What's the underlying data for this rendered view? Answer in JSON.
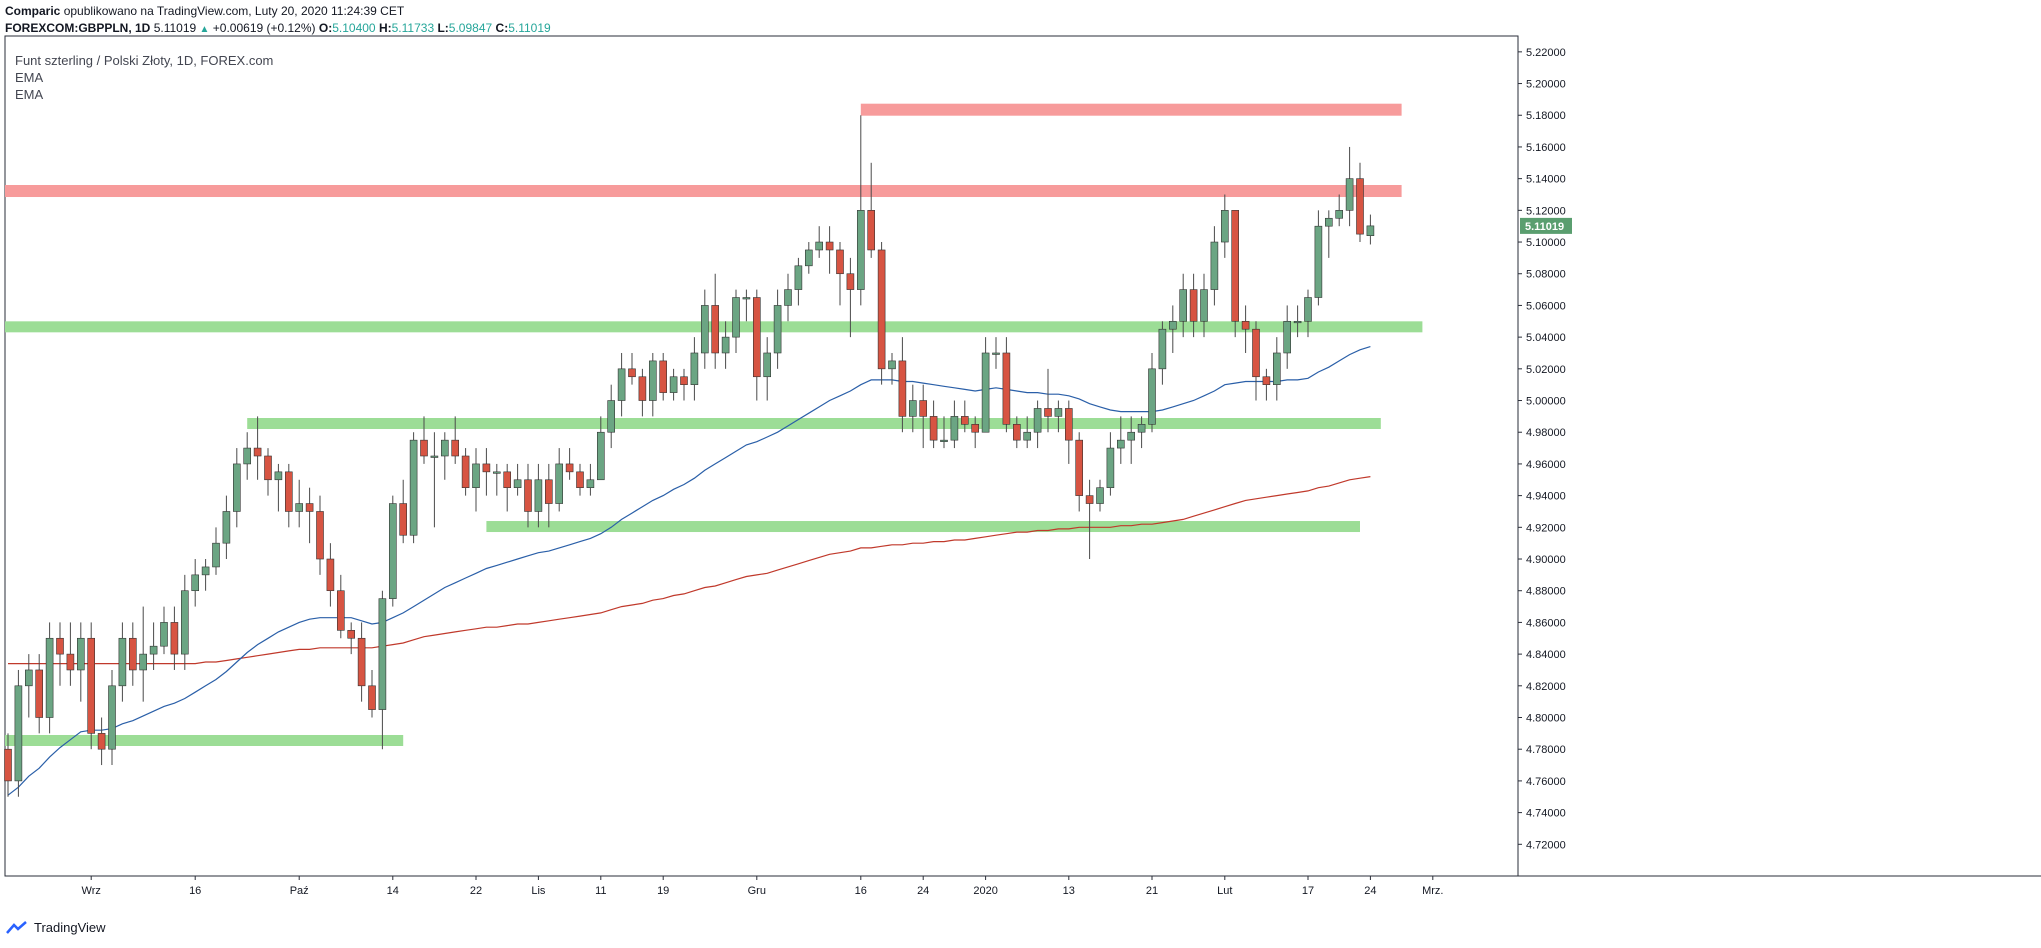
{
  "header": {
    "author": "Comparic",
    "published": "opublikowano na TradingView.com, Luty 20, 2020 11:24:39 CET",
    "symbol": "FOREXCOM:GBPPLN, 1D",
    "last": "5.11019",
    "change": "+0.00619 (+0.12%)",
    "o_label": "O:",
    "o_val": "5.10400",
    "h_label": "H:",
    "h_val": "5.11733",
    "l_label": "L:",
    "l_val": "5.09847",
    "c_label": "C:",
    "c_val": "5.11019"
  },
  "legend": {
    "title": "Funt szterling / Polski Złoty, 1D, FOREX.com",
    "ind1": "EMA",
    "ind2": "EMA"
  },
  "footer": {
    "brand": "TradingView"
  },
  "colors": {
    "up": "#6ba583",
    "down": "#d75442",
    "wick": "#4a4a4a",
    "ema_fast": "#2a5fa8",
    "ema_slow": "#c0392b",
    "resistance": "#f79b9b",
    "support": "#9cdd96",
    "last_price_bg": "#5a9e6f"
  },
  "chart_data": {
    "type": "candlestick",
    "symbol": "FOREXCOM:GBPPLN",
    "timeframe": "1D",
    "ylim": [
      4.7,
      5.23
    ],
    "y_ticks": [
      "5.22000",
      "5.20000",
      "5.18000",
      "5.16000",
      "5.14000",
      "5.12000",
      "5.10000",
      "5.08000",
      "5.06000",
      "5.04000",
      "5.02000",
      "5.00000",
      "4.98000",
      "4.96000",
      "4.94000",
      "4.92000",
      "4.90000",
      "4.88000",
      "4.86000",
      "4.84000",
      "4.82000",
      "4.80000",
      "4.78000",
      "4.76000",
      "4.74000",
      "4.72000"
    ],
    "x_ticks": [
      "Wrz",
      "16",
      "Paź",
      "14",
      "22",
      "Lis",
      "11",
      "19",
      "Gru",
      "16",
      "24",
      "2020",
      "13",
      "21",
      "Lut",
      "17",
      "24",
      "Mrz."
    ],
    "last_price_label": "5.11019",
    "candles": [
      [
        4.78,
        4.76,
        4.79,
        4.75
      ],
      [
        4.76,
        4.82,
        4.83,
        4.75
      ],
      [
        4.82,
        4.83,
        4.84,
        4.8
      ],
      [
        4.83,
        4.8,
        4.84,
        4.79
      ],
      [
        4.8,
        4.85,
        4.86,
        4.79
      ],
      [
        4.85,
        4.84,
        4.86,
        4.82
      ],
      [
        4.84,
        4.83,
        4.86,
        4.82
      ],
      [
        4.83,
        4.85,
        4.86,
        4.81
      ],
      [
        4.85,
        4.79,
        4.86,
        4.78
      ],
      [
        4.79,
        4.78,
        4.8,
        4.77
      ],
      [
        4.78,
        4.82,
        4.83,
        4.77
      ],
      [
        4.82,
        4.85,
        4.86,
        4.81
      ],
      [
        4.85,
        4.83,
        4.86,
        4.82
      ],
      [
        4.83,
        4.84,
        4.87,
        4.81
      ],
      [
        4.84,
        4.845,
        4.86,
        4.83
      ],
      [
        4.845,
        4.86,
        4.87,
        4.84
      ],
      [
        4.86,
        4.84,
        4.87,
        4.83
      ],
      [
        4.84,
        4.88,
        4.89,
        4.83
      ],
      [
        4.88,
        4.89,
        4.9,
        4.87
      ],
      [
        4.89,
        4.895,
        4.9,
        4.88
      ],
      [
        4.895,
        4.91,
        4.92,
        4.89
      ],
      [
        4.91,
        4.93,
        4.94,
        4.9
      ],
      [
        4.93,
        4.96,
        4.97,
        4.92
      ],
      [
        4.96,
        4.97,
        4.98,
        4.95
      ],
      [
        4.97,
        4.965,
        4.99,
        4.95
      ],
      [
        4.965,
        4.95,
        4.97,
        4.94
      ],
      [
        4.95,
        4.955,
        4.96,
        4.93
      ],
      [
        4.955,
        4.93,
        4.96,
        4.92
      ],
      [
        4.93,
        4.935,
        4.95,
        4.92
      ],
      [
        4.935,
        4.93,
        4.945,
        4.91
      ],
      [
        4.93,
        4.9,
        4.94,
        4.89
      ],
      [
        4.9,
        4.88,
        4.91,
        4.87
      ],
      [
        4.88,
        4.855,
        4.89,
        4.85
      ],
      [
        4.855,
        4.85,
        4.86,
        4.84
      ],
      [
        4.85,
        4.82,
        4.86,
        4.81
      ],
      [
        4.82,
        4.805,
        4.83,
        4.8
      ],
      [
        4.805,
        4.875,
        4.88,
        4.78
      ],
      [
        4.875,
        4.935,
        4.94,
        4.87
      ],
      [
        4.935,
        4.915,
        4.95,
        4.91
      ],
      [
        4.915,
        4.975,
        4.98,
        4.91
      ],
      [
        4.975,
        4.965,
        4.99,
        4.96
      ],
      [
        4.965,
        4.965,
        4.98,
        4.92
      ],
      [
        4.965,
        4.975,
        4.98,
        4.95
      ],
      [
        4.975,
        4.965,
        4.99,
        4.96
      ],
      [
        4.965,
        4.945,
        4.97,
        4.94
      ],
      [
        4.945,
        4.96,
        4.97,
        4.93
      ],
      [
        4.96,
        4.955,
        4.97,
        4.94
      ],
      [
        4.955,
        4.955,
        4.96,
        4.94
      ],
      [
        4.955,
        4.945,
        4.96,
        4.93
      ],
      [
        4.945,
        4.95,
        4.96,
        4.94
      ],
      [
        4.95,
        4.93,
        4.96,
        4.92
      ],
      [
        4.93,
        4.95,
        4.96,
        4.92
      ],
      [
        4.95,
        4.935,
        4.96,
        4.92
      ],
      [
        4.935,
        4.96,
        4.97,
        4.93
      ],
      [
        4.96,
        4.955,
        4.97,
        4.95
      ],
      [
        4.955,
        4.945,
        4.96,
        4.94
      ],
      [
        4.945,
        4.95,
        4.96,
        4.94
      ],
      [
        4.95,
        4.98,
        4.99,
        4.95
      ],
      [
        4.98,
        5.0,
        5.01,
        4.97
      ],
      [
        5.0,
        5.02,
        5.03,
        4.99
      ],
      [
        5.02,
        5.015,
        5.03,
        5.01
      ],
      [
        5.015,
        5.0,
        5.02,
        4.99
      ],
      [
        5.0,
        5.025,
        5.03,
        4.99
      ],
      [
        5.025,
        5.005,
        5.03,
        5.0
      ],
      [
        5.005,
        5.015,
        5.02,
        5.0
      ],
      [
        5.015,
        5.01,
        5.02,
        5.0
      ],
      [
        5.01,
        5.03,
        5.04,
        5.0
      ],
      [
        5.03,
        5.06,
        5.07,
        5.02
      ],
      [
        5.06,
        5.03,
        5.08,
        5.02
      ],
      [
        5.03,
        5.04,
        5.05,
        5.02
      ],
      [
        5.04,
        5.065,
        5.07,
        5.03
      ],
      [
        5.065,
        5.065,
        5.07,
        5.05
      ],
      [
        5.065,
        5.015,
        5.07,
        5.0
      ],
      [
        5.015,
        5.03,
        5.04,
        5.0
      ],
      [
        5.03,
        5.06,
        5.07,
        5.02
      ],
      [
        5.06,
        5.07,
        5.08,
        5.05
      ],
      [
        5.07,
        5.085,
        5.09,
        5.06
      ],
      [
        5.085,
        5.095,
        5.1,
        5.08
      ],
      [
        5.095,
        5.1,
        5.11,
        5.09
      ],
      [
        5.1,
        5.095,
        5.11,
        5.08
      ],
      [
        5.095,
        5.08,
        5.1,
        5.06
      ],
      [
        5.08,
        5.07,
        5.09,
        5.04
      ],
      [
        5.07,
        5.12,
        5.18,
        5.06
      ],
      [
        5.12,
        5.095,
        5.15,
        5.09
      ],
      [
        5.095,
        5.02,
        5.1,
        5.01
      ],
      [
        5.02,
        5.025,
        5.03,
        5.01
      ],
      [
        5.025,
        4.99,
        5.04,
        4.98
      ],
      [
        4.99,
        5.0,
        5.01,
        4.98
      ],
      [
        5.0,
        4.99,
        5.01,
        4.97
      ],
      [
        4.99,
        4.975,
        5.0,
        4.97
      ],
      [
        4.975,
        4.975,
        4.99,
        4.97
      ],
      [
        4.975,
        4.99,
        5.0,
        4.97
      ],
      [
        4.99,
        4.985,
        5.0,
        4.98
      ],
      [
        4.985,
        4.98,
        4.99,
        4.97
      ],
      [
        4.98,
        5.03,
        5.04,
        4.98
      ],
      [
        5.03,
        5.03,
        5.04,
        5.02
      ],
      [
        5.03,
        4.985,
        5.04,
        4.98
      ],
      [
        4.985,
        4.975,
        4.99,
        4.97
      ],
      [
        4.975,
        4.98,
        4.99,
        4.97
      ],
      [
        4.98,
        4.995,
        5.0,
        4.97
      ],
      [
        4.995,
        4.99,
        5.02,
        4.98
      ],
      [
        4.99,
        4.995,
        5.0,
        4.98
      ],
      [
        4.995,
        4.975,
        5.0,
        4.96
      ],
      [
        4.975,
        4.94,
        4.98,
        4.93
      ],
      [
        4.94,
        4.935,
        4.95,
        4.9
      ],
      [
        4.935,
        4.945,
        4.95,
        4.93
      ],
      [
        4.945,
        4.97,
        4.98,
        4.94
      ],
      [
        4.97,
        4.975,
        4.99,
        4.96
      ],
      [
        4.975,
        4.98,
        4.99,
        4.96
      ],
      [
        4.98,
        4.985,
        4.99,
        4.97
      ],
      [
        4.985,
        5.02,
        5.03,
        4.98
      ],
      [
        5.02,
        5.045,
        5.05,
        5.01
      ],
      [
        5.045,
        5.05,
        5.06,
        5.03
      ],
      [
        5.05,
        5.07,
        5.08,
        5.04
      ],
      [
        5.07,
        5.05,
        5.08,
        5.04
      ],
      [
        5.05,
        5.07,
        5.08,
        5.04
      ],
      [
        5.07,
        5.1,
        5.11,
        5.06
      ],
      [
        5.1,
        5.12,
        5.13,
        5.09
      ],
      [
        5.12,
        5.05,
        5.12,
        5.04
      ],
      [
        5.05,
        5.045,
        5.06,
        5.03
      ],
      [
        5.045,
        5.015,
        5.05,
        5.0
      ],
      [
        5.015,
        5.01,
        5.02,
        5.0
      ],
      [
        5.01,
        5.03,
        5.04,
        5.0
      ],
      [
        5.03,
        5.05,
        5.06,
        5.02
      ],
      [
        5.05,
        5.05,
        5.06,
        5.04
      ],
      [
        5.05,
        5.065,
        5.07,
        5.04
      ],
      [
        5.065,
        5.11,
        5.12,
        5.06
      ],
      [
        5.11,
        5.115,
        5.12,
        5.09
      ],
      [
        5.115,
        5.12,
        5.13,
        5.11
      ],
      [
        5.12,
        5.14,
        5.16,
        5.11
      ],
      [
        5.14,
        5.105,
        5.15,
        5.1
      ],
      [
        5.104,
        5.11019,
        5.11733,
        5.09847
      ]
    ],
    "ema_fast": [
      4.751,
      4.756,
      4.763,
      4.768,
      4.775,
      4.781,
      4.786,
      4.791,
      4.792,
      4.792,
      4.793,
      4.796,
      4.798,
      4.801,
      4.804,
      4.807,
      4.809,
      4.812,
      4.816,
      4.82,
      4.824,
      4.829,
      4.835,
      4.841,
      4.846,
      4.85,
      4.854,
      4.857,
      4.86,
      4.862,
      4.863,
      4.863,
      4.863,
      4.863,
      4.861,
      4.859,
      4.86,
      4.863,
      4.866,
      4.87,
      4.874,
      4.878,
      4.882,
      4.885,
      4.888,
      4.891,
      4.894,
      4.896,
      4.898,
      4.9,
      4.902,
      4.904,
      4.905,
      4.907,
      4.909,
      4.911,
      4.913,
      4.916,
      4.92,
      4.925,
      4.929,
      4.933,
      4.937,
      4.94,
      4.944,
      4.947,
      4.951,
      4.956,
      4.96,
      4.964,
      4.968,
      4.972,
      4.974,
      4.977,
      4.98,
      4.984,
      4.988,
      4.992,
      4.996,
      5.0,
      5.003,
      5.006,
      5.01,
      5.013,
      5.013,
      5.013,
      5.012,
      5.012,
      5.011,
      5.01,
      5.009,
      5.008,
      5.007,
      5.006,
      5.007,
      5.008,
      5.007,
      5.006,
      5.005,
      5.005,
      5.004,
      5.004,
      5.003,
      5.001,
      4.998,
      4.996,
      4.994,
      4.993,
      4.993,
      4.993,
      4.993,
      4.994,
      4.996,
      4.998,
      5.0,
      5.003,
      5.006,
      5.01,
      5.011,
      5.012,
      5.012,
      5.012,
      5.012,
      5.013,
      5.013,
      5.014,
      5.018,
      5.021,
      5.025,
      5.029,
      5.032,
      5.034
    ],
    "ema_slow": [
      4.834,
      4.834,
      4.834,
      4.834,
      4.834,
      4.834,
      4.834,
      4.834,
      4.834,
      4.834,
      4.834,
      4.834,
      4.834,
      4.834,
      4.834,
      4.834,
      4.834,
      4.834,
      4.834,
      4.835,
      4.835,
      4.836,
      4.837,
      4.838,
      4.839,
      4.84,
      4.841,
      4.842,
      4.843,
      4.843,
      4.844,
      4.844,
      4.844,
      4.844,
      4.844,
      4.844,
      4.845,
      4.846,
      4.847,
      4.849,
      4.851,
      4.852,
      4.853,
      4.854,
      4.855,
      4.856,
      4.857,
      4.857,
      4.858,
      4.859,
      4.859,
      4.86,
      4.861,
      4.862,
      4.863,
      4.864,
      4.865,
      4.866,
      4.868,
      4.87,
      4.871,
      4.872,
      4.874,
      4.875,
      4.877,
      4.878,
      4.88,
      4.882,
      4.883,
      4.885,
      4.887,
      4.889,
      4.89,
      4.891,
      4.893,
      4.895,
      4.897,
      4.899,
      4.901,
      4.903,
      4.904,
      4.905,
      4.907,
      4.907,
      4.908,
      4.909,
      4.909,
      4.91,
      4.91,
      4.911,
      4.911,
      4.912,
      4.912,
      4.913,
      4.914,
      4.915,
      4.916,
      4.917,
      4.917,
      4.918,
      4.918,
      4.919,
      4.919,
      4.92,
      4.92,
      4.92,
      4.92,
      4.921,
      4.921,
      4.922,
      4.922,
      4.923,
      4.924,
      4.925,
      4.927,
      4.929,
      4.931,
      4.933,
      4.935,
      4.937,
      4.938,
      4.939,
      4.94,
      4.941,
      4.942,
      4.943,
      4.945,
      4.946,
      4.948,
      4.95,
      4.951,
      4.952
    ],
    "zones": [
      {
        "kind": "resistance",
        "y": 5.1835,
        "start": 82,
        "end": 134
      },
      {
        "kind": "resistance",
        "y": 5.1322,
        "start": 0,
        "end": 134
      },
      {
        "kind": "support",
        "y": 5.0465,
        "start": 0,
        "end": 136
      },
      {
        "kind": "support",
        "y": 4.9855,
        "start": 23,
        "end": 132
      },
      {
        "kind": "support",
        "y": 4.9205,
        "start": 46,
        "end": 130
      },
      {
        "kind": "support",
        "y": 4.7855,
        "start": 0,
        "end": 38
      }
    ]
  }
}
